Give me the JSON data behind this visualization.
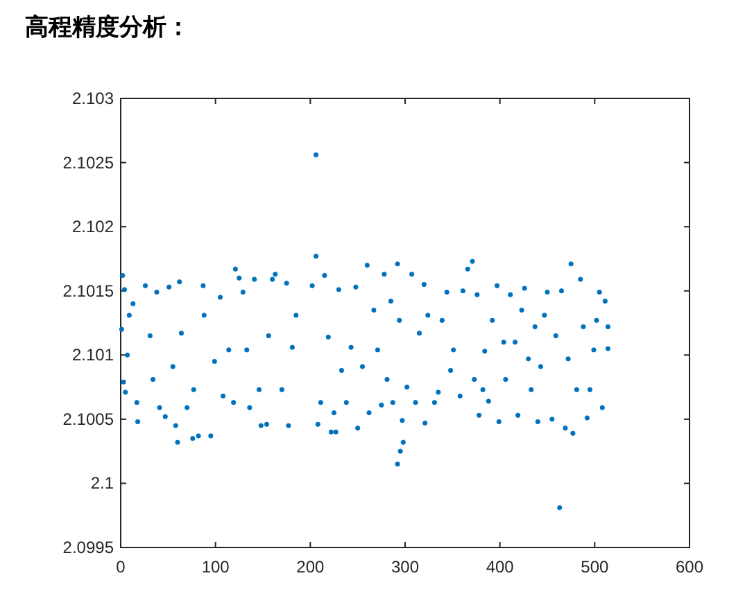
{
  "chart_data": {
    "type": "scatter",
    "title": "高程精度分析：",
    "color": "#0072bd",
    "marker": "circle",
    "grid": false,
    "xlim": [
      0,
      600
    ],
    "xticks": [
      0,
      100,
      200,
      300,
      400,
      500,
      600
    ],
    "ylim": [
      2.0995,
      2.103
    ],
    "yticks": [
      2.0995,
      2.1,
      2.1005,
      2.101,
      2.1015,
      2.102,
      2.1025,
      2.103
    ],
    "x": [
      2,
      4,
      1,
      7,
      3,
      5,
      9,
      13,
      17,
      18,
      26,
      31,
      34,
      38,
      41,
      47,
      51,
      55,
      58,
      60,
      62,
      64,
      70,
      76,
      77,
      82,
      87,
      88,
      95,
      99,
      105,
      108,
      114,
      119,
      121,
      125,
      129,
      133,
      136,
      141,
      146,
      148,
      154,
      156,
      160,
      163,
      170,
      175,
      177,
      181,
      185,
      206,
      206,
      202,
      208,
      211,
      215,
      219,
      222,
      227,
      225,
      230,
      233,
      238,
      243,
      248,
      250,
      255,
      260,
      262,
      267,
      271,
      275,
      278,
      281,
      285,
      287,
      292,
      292,
      295,
      298,
      297,
      294,
      302,
      307,
      311,
      315,
      320,
      321,
      324,
      331,
      335,
      339,
      344,
      348,
      351,
      358,
      361,
      366,
      371,
      373,
      376,
      378,
      382,
      384,
      388,
      392,
      397,
      399,
      404,
      406,
      411,
      416,
      419,
      423,
      426,
      430,
      433,
      437,
      440,
      443,
      447,
      450,
      455,
      459,
      463,
      465,
      469,
      472,
      475,
      477,
      481,
      485,
      488,
      492,
      495,
      499,
      502,
      505,
      508,
      511,
      514,
      514
    ],
    "values": [
      2.10162,
      2.10151,
      2.1012,
      2.101,
      2.10079,
      2.10071,
      2.10131,
      2.1014,
      2.10063,
      2.10048,
      2.10154,
      2.10115,
      2.10081,
      2.10149,
      2.10059,
      2.10052,
      2.10153,
      2.10091,
      2.10045,
      2.10032,
      2.10157,
      2.10117,
      2.10059,
      2.10035,
      2.10073,
      2.10037,
      2.10154,
      2.10131,
      2.10037,
      2.10095,
      2.10145,
      2.10068,
      2.10104,
      2.10063,
      2.10167,
      2.1016,
      2.10149,
      2.10104,
      2.10059,
      2.10159,
      2.10073,
      2.10045,
      2.10046,
      2.10115,
      2.10159,
      2.10163,
      2.10073,
      2.10156,
      2.10045,
      2.10106,
      2.10131,
      2.10256,
      2.10177,
      2.10154,
      2.10046,
      2.10063,
      2.10162,
      2.10114,
      2.1004,
      2.1004,
      2.10055,
      2.10151,
      2.10088,
      2.10063,
      2.10106,
      2.10153,
      2.10043,
      2.10091,
      2.1017,
      2.10055,
      2.10135,
      2.10104,
      2.10061,
      2.10163,
      2.10081,
      2.10142,
      2.10063,
      2.10171,
      2.10015,
      2.10025,
      2.10032,
      2.10049,
      2.10127,
      2.10075,
      2.10163,
      2.10063,
      2.10117,
      2.10155,
      2.10047,
      2.10131,
      2.10063,
      2.10071,
      2.10127,
      2.10149,
      2.10088,
      2.10104,
      2.10068,
      2.1015,
      2.10167,
      2.10173,
      2.10081,
      2.10147,
      2.10053,
      2.10073,
      2.10103,
      2.10064,
      2.10127,
      2.10154,
      2.10048,
      2.1011,
      2.10081,
      2.10147,
      2.1011,
      2.10053,
      2.10135,
      2.10152,
      2.10097,
      2.10073,
      2.10122,
      2.10048,
      2.10091,
      2.10131,
      2.10149,
      2.1005,
      2.10115,
      2.09981,
      2.1015,
      2.10043,
      2.10097,
      2.10171,
      2.10039,
      2.10073,
      2.10159,
      2.10122,
      2.10051,
      2.10073,
      2.10104,
      2.10127,
      2.10149,
      2.10059,
      2.10142,
      2.10105,
      2.10122
    ]
  }
}
